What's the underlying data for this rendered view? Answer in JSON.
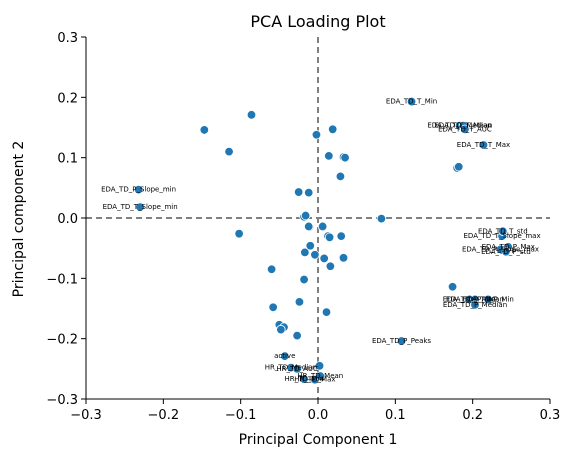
{
  "chart_data": {
    "type": "scatter",
    "title": "PCA Loading Plot",
    "xlabel": "Principal Component 1",
    "ylabel": "Principal component 2",
    "xlim": [
      -0.3,
      0.3
    ],
    "ylim": [
      -0.3,
      0.3
    ],
    "x_ticks": [
      "−0.3",
      "−0.2",
      "−0.1",
      "0.0",
      "0.1",
      "0.2",
      "0.3"
    ],
    "y_ticks": [
      "−0.3",
      "−0.2",
      "−0.1",
      "0.0",
      "0.1",
      "0.2",
      "0.3"
    ],
    "reference_lines": {
      "x": 0,
      "y": 0,
      "style": "dashed",
      "color": "#808080"
    },
    "point_color": "#1f77b4",
    "points": [
      {
        "x": 0.121,
        "y": 0.193,
        "label": "EDA_TD_T_Min"
      },
      {
        "x": 0.183,
        "y": 0.153,
        "label": "EDA_TD_T_Median"
      },
      {
        "x": 0.188,
        "y": 0.153,
        "label": "EDA_TD_T_Mean"
      },
      {
        "x": 0.19,
        "y": 0.147,
        "label": "EDA_TD_T_AUC"
      },
      {
        "x": 0.214,
        "y": 0.121,
        "label": "EDA_TD_T_Max"
      },
      {
        "x": 0.18,
        "y": 0.083,
        "label": ""
      },
      {
        "x": 0.182,
        "y": 0.085,
        "label": ""
      },
      {
        "x": -0.232,
        "y": 0.047,
        "label": "EDA_TD_P_Slope_min"
      },
      {
        "x": -0.23,
        "y": 0.018,
        "label": "EDA_TD_T_Slope_min"
      },
      {
        "x": 0.238,
        "y": -0.03,
        "label": "EDA_TD_T_Slope_max"
      },
      {
        "x": 0.239,
        "y": -0.022,
        "label": "EDA_TD_T_std"
      },
      {
        "x": 0.236,
        "y": -0.052,
        "label": "EDA_TD_P_Slope_max"
      },
      {
        "x": 0.246,
        "y": -0.048,
        "label": "EDA_TD_P_Max"
      },
      {
        "x": 0.243,
        "y": -0.056,
        "label": "EDA_TD_P_std"
      },
      {
        "x": 0.174,
        "y": -0.114,
        "label": ""
      },
      {
        "x": 0.196,
        "y": -0.135,
        "label": "EDA_TD_P_AUC"
      },
      {
        "x": 0.203,
        "y": -0.135,
        "label": "EDA_TD_P_Mean"
      },
      {
        "x": 0.22,
        "y": -0.135,
        "label": "EDA_TD_P_Min"
      },
      {
        "x": 0.203,
        "y": -0.144,
        "label": "EDA_TD_P_Median"
      },
      {
        "x": 0.108,
        "y": -0.204,
        "label": "EDA_TD_P_Peaks"
      },
      {
        "x": -0.043,
        "y": -0.229,
        "label": "active"
      },
      {
        "x": -0.035,
        "y": -0.248,
        "label": "HR_TD_Median"
      },
      {
        "x": -0.027,
        "y": -0.25,
        "label": "HR_TD_AUC"
      },
      {
        "x": -0.018,
        "y": -0.267,
        "label": "HR_TD_Min"
      },
      {
        "x": -0.004,
        "y": -0.268,
        "label": "HR_TD_Max"
      },
      {
        "x": 0.003,
        "y": -0.262,
        "label": "HR_TD_Mean"
      },
      {
        "x": 0.002,
        "y": -0.245,
        "label": ""
      },
      {
        "x": -0.147,
        "y": 0.146,
        "label": ""
      },
      {
        "x": -0.086,
        "y": 0.171,
        "label": ""
      },
      {
        "x": -0.115,
        "y": 0.11,
        "label": ""
      },
      {
        "x": -0.002,
        "y": 0.138,
        "label": ""
      },
      {
        "x": 0.019,
        "y": 0.147,
        "label": ""
      },
      {
        "x": 0.014,
        "y": 0.103,
        "label": ""
      },
      {
        "x": 0.033,
        "y": 0.101,
        "label": ""
      },
      {
        "x": 0.035,
        "y": 0.1,
        "label": ""
      },
      {
        "x": 0.029,
        "y": 0.069,
        "label": ""
      },
      {
        "x": -0.025,
        "y": 0.043,
        "label": ""
      },
      {
        "x": -0.012,
        "y": 0.042,
        "label": ""
      },
      {
        "x": -0.018,
        "y": 0.002,
        "label": ""
      },
      {
        "x": -0.016,
        "y": 0.004,
        "label": ""
      },
      {
        "x": -0.011,
        "y": -0.015,
        "label": ""
      },
      {
        "x": -0.012,
        "y": -0.014,
        "label": ""
      },
      {
        "x": 0.006,
        "y": -0.014,
        "label": ""
      },
      {
        "x": 0.082,
        "y": -0.001,
        "label": ""
      },
      {
        "x": 0.013,
        "y": -0.03,
        "label": ""
      },
      {
        "x": 0.015,
        "y": -0.032,
        "label": ""
      },
      {
        "x": 0.03,
        "y": -0.03,
        "label": ""
      },
      {
        "x": -0.102,
        "y": -0.026,
        "label": ""
      },
      {
        "x": -0.017,
        "y": -0.057,
        "label": ""
      },
      {
        "x": -0.01,
        "y": -0.046,
        "label": ""
      },
      {
        "x": -0.004,
        "y": -0.061,
        "label": ""
      },
      {
        "x": 0.008,
        "y": -0.067,
        "label": ""
      },
      {
        "x": 0.033,
        "y": -0.066,
        "label": ""
      },
      {
        "x": 0.016,
        "y": -0.08,
        "label": ""
      },
      {
        "x": -0.06,
        "y": -0.085,
        "label": ""
      },
      {
        "x": -0.018,
        "y": -0.102,
        "label": ""
      },
      {
        "x": -0.024,
        "y": -0.139,
        "label": ""
      },
      {
        "x": -0.058,
        "y": -0.148,
        "label": ""
      },
      {
        "x": 0.011,
        "y": -0.156,
        "label": ""
      },
      {
        "x": -0.05,
        "y": -0.177,
        "label": ""
      },
      {
        "x": -0.044,
        "y": -0.181,
        "label": ""
      },
      {
        "x": -0.048,
        "y": -0.185,
        "label": ""
      },
      {
        "x": -0.027,
        "y": -0.195,
        "label": ""
      }
    ]
  }
}
